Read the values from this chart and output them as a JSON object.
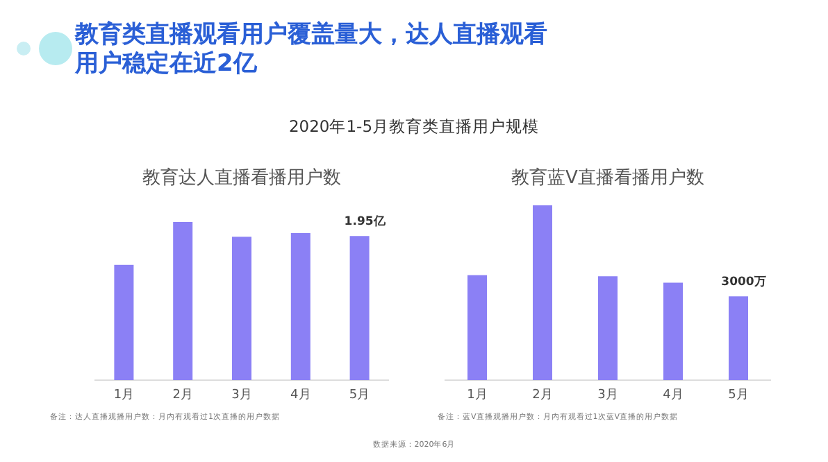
{
  "chart_data": [
    {
      "type": "bar",
      "title": "教育达人直播看播用户数",
      "categories": [
        "1月",
        "2月",
        "3月",
        "4月",
        "5月"
      ],
      "values": [
        1.56,
        2.14,
        1.94,
        1.99,
        1.95
      ],
      "value_labels": [
        null,
        null,
        null,
        null,
        "1.95亿"
      ],
      "color": "#8b80f5",
      "annotations": [
        "教育类直播观看用户覆盖量大，达人直播观看用户稳定在近2亿",
        "2020年1-5月教育类直播用户规模",
        "备注：达人直播观播用户数：月内有观看过1次直播的用户数据",
        "数据来源：2020年6月"
      ]
    },
    {
      "type": "bar",
      "title": "教育蓝V直播看播用户数",
      "categories": [
        "1月",
        "2月",
        "3月",
        "4月",
        "5月"
      ],
      "values": [
        3760,
        6260,
        3720,
        3490,
        3000
      ],
      "value_labels": [
        null,
        null,
        null,
        null,
        "3000万"
      ],
      "color": "#8b80f5",
      "annotations": [
        "备注：蓝V直播观播用户数：月内有观看过1次蓝V直播的用户数据"
      ]
    }
  ]
}
